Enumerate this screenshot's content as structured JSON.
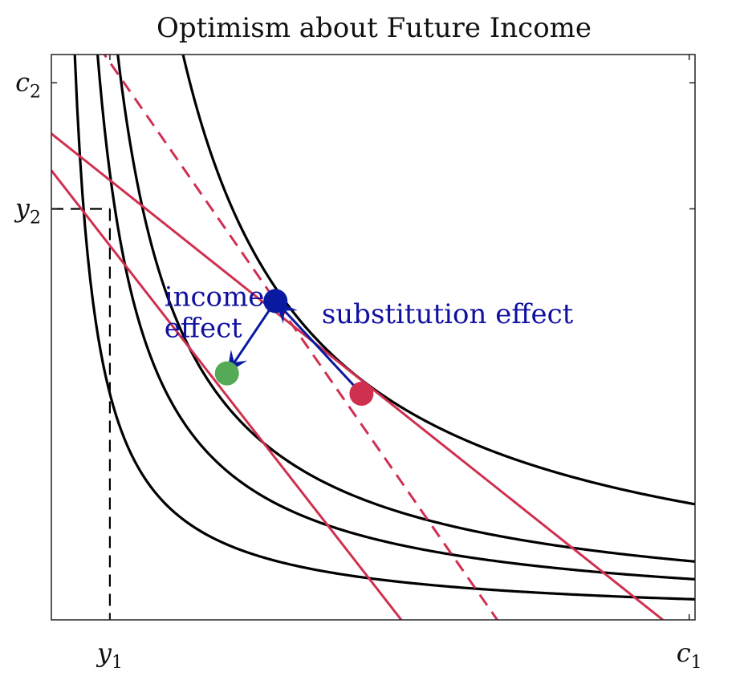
{
  "chart_data": {
    "type": "line",
    "title": "Optimism about Future Income",
    "xlabel": "",
    "ylabel": "",
    "xlim": [
      0,
      11
    ],
    "ylim": [
      0,
      10
    ],
    "x_ticks": [
      {
        "value": 1.0,
        "label": "y",
        "sub": "1"
      },
      {
        "value": 10.9,
        "label": "c",
        "sub": "1"
      }
    ],
    "y_ticks": [
      {
        "value": 7.27,
        "label": "y",
        "sub": "2"
      },
      {
        "value": 9.5,
        "label": "c",
        "sub": "2"
      }
    ],
    "endowment": {
      "x": 1.0,
      "y": 7.27
    },
    "indifference_curves": [
      {
        "name": "",
        "k": 4.0
      },
      {
        "name": "",
        "k": 7.9
      },
      {
        "name": "",
        "k": 11.35
      },
      {
        "name": "",
        "k": 22.5
      }
    ],
    "budget_lines": [
      {
        "name": "",
        "style": "solid",
        "points": [
          [
            0,
            8.6
          ],
          [
            10.45,
            0
          ]
        ]
      },
      {
        "name": "",
        "style": "solid",
        "points": [
          [
            0,
            7.95
          ],
          [
            5.98,
            0
          ]
        ]
      },
      {
        "name": "",
        "style": "dashed",
        "points": [
          [
            0,
            11.35
          ],
          [
            7.62,
            0
          ]
        ]
      }
    ],
    "points": [
      {
        "name": "",
        "x": 5.3,
        "y": 4.0,
        "color": "#d03050"
      },
      {
        "name": "",
        "x": 3.83,
        "y": 5.64,
        "color": "#0a1aa0"
      },
      {
        "name": "",
        "x": 3.0,
        "y": 4.36,
        "color": "#55aa55"
      }
    ],
    "arrows": [
      {
        "from": [
          5.3,
          4.0
        ],
        "to": [
          3.83,
          5.64
        ],
        "color": "#0a1aa0"
      },
      {
        "from": [
          3.83,
          5.64
        ],
        "to": [
          3.0,
          4.36
        ],
        "color": "#0a1aa0"
      }
    ],
    "annotations": [
      {
        "text": "substitution effect",
        "lines": [
          "substitution effect"
        ],
        "x": 4.62,
        "y": 5.25
      },
      {
        "text": "income effect",
        "lines": [
          "income",
          "effect"
        ],
        "x": 1.93,
        "y": 5.55
      }
    ],
    "colors": {
      "indifference": "#000000",
      "budget": "#d03050",
      "effects": "#0a1aa0",
      "guides": "#000000"
    },
    "grid": false
  }
}
